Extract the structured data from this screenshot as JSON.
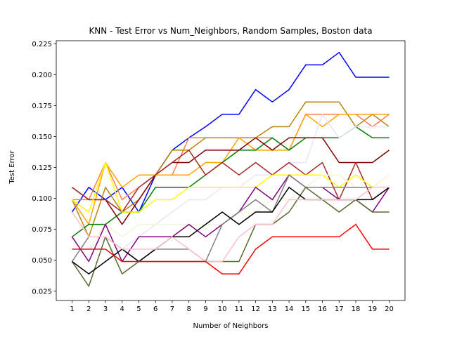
{
  "chart_data": {
    "type": "line",
    "title": "KNN - Test Error vs Num_Neighbors, Random Samples, Boston data",
    "xlabel": "Number of Neighbors",
    "ylabel": "Test Error",
    "x": [
      1,
      2,
      3,
      4,
      5,
      6,
      7,
      8,
      9,
      10,
      11,
      12,
      13,
      14,
      15,
      16,
      17,
      18,
      19,
      20
    ],
    "xlim": [
      0.05,
      20.95
    ],
    "ylim": [
      0.0175,
      0.2275
    ],
    "yticks": [
      "0.025",
      "0.050",
      "0.075",
      "0.100",
      "0.125",
      "0.150",
      "0.175",
      "0.200",
      "0.225"
    ],
    "xticks": [
      "1",
      "2",
      "3",
      "4",
      "5",
      "6",
      "7",
      "8",
      "9",
      "10",
      "11",
      "12",
      "13",
      "14",
      "15",
      "16",
      "17",
      "18",
      "19",
      "20"
    ],
    "grid": false,
    "legend": "none",
    "series": [
      {
        "color": "#0000ff",
        "values": [
          0.089,
          0.109,
          0.099,
          0.109,
          0.089,
          0.119,
          0.139,
          0.149,
          0.158,
          0.168,
          0.168,
          0.188,
          0.178,
          0.188,
          0.208,
          0.208,
          0.218,
          0.198,
          0.198,
          0.198
        ]
      },
      {
        "color": "#ff7f50",
        "values": [
          0.099,
          0.099,
          0.129,
          0.099,
          0.109,
          0.119,
          0.119,
          0.149,
          0.149,
          0.149,
          0.149,
          0.149,
          0.149,
          0.139,
          0.168,
          0.168,
          0.168,
          0.168,
          0.158,
          0.168
        ]
      },
      {
        "color": "#b8860b",
        "values": [
          0.099,
          0.069,
          0.109,
          0.089,
          0.099,
          0.119,
          0.139,
          0.139,
          0.149,
          0.149,
          0.149,
          0.149,
          0.158,
          0.158,
          0.178,
          0.178,
          0.178,
          0.158,
          0.168,
          0.158
        ]
      },
      {
        "color": "#ffa500",
        "values": [
          0.099,
          0.079,
          0.129,
          0.109,
          0.119,
          0.119,
          0.119,
          0.119,
          0.129,
          0.129,
          0.149,
          0.139,
          0.139,
          0.139,
          0.168,
          0.158,
          0.168,
          0.168,
          0.168,
          0.168
        ]
      },
      {
        "color": "#008000",
        "values": [
          0.069,
          0.079,
          0.079,
          0.089,
          0.089,
          0.109,
          0.109,
          0.109,
          0.119,
          0.129,
          0.139,
          0.139,
          0.149,
          0.139,
          0.149,
          0.149,
          0.149,
          0.158,
          0.149,
          0.149
        ]
      },
      {
        "color": "#e6e6fa",
        "values": [
          0.059,
          0.059,
          0.069,
          0.059,
          0.069,
          0.079,
          0.089,
          0.099,
          0.099,
          0.109,
          0.109,
          0.119,
          0.119,
          0.129,
          0.129,
          0.168,
          0.149,
          0.158,
          0.158,
          0.158
        ]
      },
      {
        "color": "#800000",
        "values": [
          0.109,
          0.099,
          0.099,
          0.079,
          0.099,
          0.119,
          0.129,
          0.129,
          0.139,
          0.139,
          0.139,
          0.149,
          0.139,
          0.149,
          0.149,
          0.149,
          0.129,
          0.129,
          0.129,
          0.139
        ]
      },
      {
        "color": "#a52a2a",
        "values": [
          0.109,
          0.099,
          0.099,
          0.089,
          0.109,
          0.119,
          0.129,
          0.139,
          0.119,
          0.129,
          0.119,
          0.129,
          0.119,
          0.129,
          0.119,
          0.129,
          0.099,
          0.129,
          0.099,
          0.109
        ]
      },
      {
        "color": "#ffff00",
        "values": [
          0.099,
          0.089,
          0.129,
          0.089,
          0.089,
          0.099,
          0.099,
          0.109,
          0.109,
          0.109,
          0.109,
          0.109,
          0.119,
          0.119,
          0.119,
          0.119,
          0.109,
          0.119,
          0.109,
          0.119
        ]
      },
      {
        "color": "#f5f5dc",
        "values": [
          0.059,
          0.059,
          0.079,
          0.069,
          0.079,
          0.079,
          0.079,
          0.079,
          0.079,
          0.079,
          0.089,
          0.089,
          0.099,
          0.099,
          0.109,
          0.119,
          0.119,
          0.109,
          0.109,
          0.119
        ]
      },
      {
        "color": "#800080",
        "values": [
          0.069,
          0.049,
          0.079,
          0.049,
          0.069,
          0.069,
          0.069,
          0.079,
          0.069,
          0.079,
          0.089,
          0.109,
          0.099,
          0.119,
          0.109,
          0.109,
          0.099,
          0.099,
          0.089,
          0.109
        ]
      },
      {
        "color": "#808080",
        "values": [
          0.049,
          0.069,
          0.069,
          0.059,
          0.049,
          0.059,
          0.059,
          0.059,
          0.049,
          0.079,
          0.089,
          0.099,
          0.089,
          0.119,
          0.109,
          0.109,
          0.109,
          0.109,
          0.109,
          0.109
        ]
      },
      {
        "color": "#556b2f",
        "values": [
          0.049,
          0.029,
          0.069,
          0.039,
          0.049,
          0.049,
          0.049,
          0.049,
          0.049,
          0.049,
          0.049,
          0.079,
          0.079,
          0.089,
          0.109,
          0.099,
          0.089,
          0.099,
          0.089,
          0.089
        ]
      },
      {
        "color": "#000000",
        "values": [
          0.049,
          0.039,
          0.049,
          0.059,
          0.049,
          0.059,
          0.069,
          0.069,
          0.079,
          0.089,
          0.079,
          0.089,
          0.089,
          0.109,
          0.099,
          0.099,
          0.099,
          0.099,
          0.099,
          0.109
        ]
      },
      {
        "color": "#ffc0cb",
        "values": [
          0.089,
          0.069,
          0.069,
          0.059,
          0.059,
          0.059,
          0.069,
          0.059,
          0.049,
          0.049,
          0.069,
          0.079,
          0.079,
          0.099,
          0.099,
          0.099,
          0.099,
          0.099,
          0.109,
          0.109
        ]
      },
      {
        "color": "#ff0000",
        "values": [
          0.059,
          0.059,
          0.059,
          0.049,
          0.049,
          0.049,
          0.049,
          0.049,
          0.049,
          0.039,
          0.039,
          0.059,
          0.069,
          0.069,
          0.069,
          0.069,
          0.069,
          0.079,
          0.059,
          0.059
        ]
      }
    ]
  }
}
